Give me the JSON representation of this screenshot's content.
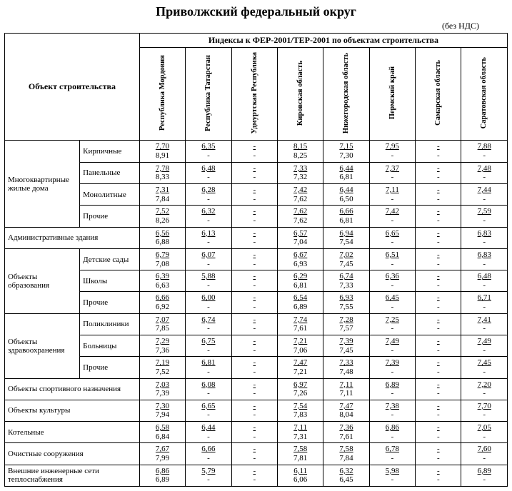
{
  "title": "Приволжский федеральный округ",
  "subtitle": "(без НДС)",
  "indexHeader": "Индексы к ФЕР-2001/ТЕР-2001 по объектам строительства",
  "objectHeader": "Объект строительства",
  "regions": [
    "Республика Мордовия",
    "Республика Татарстан",
    "Удмуртская Республика",
    "Кировская область",
    "Нижегородская область",
    "Пермский край",
    "Самарская область",
    "Саратовская область"
  ],
  "rows": [
    {
      "cat": "Многоквартирные жилые дома",
      "span": 4,
      "sub": "Кирпичные",
      "vals": [
        [
          "7,70",
          "8,91"
        ],
        [
          "6,35",
          "-"
        ],
        [
          "-",
          "-"
        ],
        [
          "8,15",
          "8,25"
        ],
        [
          "7,15",
          "7,30"
        ],
        [
          "7,95",
          "-"
        ],
        [
          "-",
          "-"
        ],
        [
          "7,88",
          "-"
        ]
      ]
    },
    {
      "sub": "Панельные",
      "vals": [
        [
          "7,78",
          "8,33"
        ],
        [
          "6,48",
          "-"
        ],
        [
          "-",
          "-"
        ],
        [
          "7,33",
          "7,32"
        ],
        [
          "6,44",
          "6,81"
        ],
        [
          "7,37",
          "-"
        ],
        [
          "-",
          "-"
        ],
        [
          "7,48",
          "-"
        ]
      ]
    },
    {
      "sub": "Монолитные",
      "vals": [
        [
          "7,31",
          "7,84"
        ],
        [
          "6,28",
          "-"
        ],
        [
          "-",
          "-"
        ],
        [
          "7,42",
          "7,62"
        ],
        [
          "6,44",
          "6,50"
        ],
        [
          "7,11",
          "-"
        ],
        [
          "-",
          "-"
        ],
        [
          "7,44",
          "-"
        ]
      ]
    },
    {
      "sub": "Прочие",
      "vals": [
        [
          "7,52",
          "8,26"
        ],
        [
          "6,32",
          "-"
        ],
        [
          "-",
          "-"
        ],
        [
          "7,62",
          "7,62"
        ],
        [
          "6,66",
          "6,81"
        ],
        [
          "7,42",
          "-"
        ],
        [
          "-",
          "-"
        ],
        [
          "7,59",
          "-"
        ]
      ]
    },
    {
      "cat": "Административные здания",
      "colspan": 2,
      "vals": [
        [
          "6,56",
          "6,88"
        ],
        [
          "6,13",
          "-"
        ],
        [
          "-",
          "-"
        ],
        [
          "6,57",
          "7,04"
        ],
        [
          "6,94",
          "7,54"
        ],
        [
          "6,65",
          "-"
        ],
        [
          "-",
          "-"
        ],
        [
          "6,83",
          "-"
        ]
      ]
    },
    {
      "cat": "Объекты образования",
      "span": 3,
      "sub": "Детские сады",
      "vals": [
        [
          "6,79",
          "7,08"
        ],
        [
          "6,07",
          "-"
        ],
        [
          "-",
          "-"
        ],
        [
          "6,67",
          "6,93"
        ],
        [
          "7,02",
          "7,45"
        ],
        [
          "6,51",
          "-"
        ],
        [
          "-",
          "-"
        ],
        [
          "6,83",
          "-"
        ]
      ]
    },
    {
      "sub": "Школы",
      "vals": [
        [
          "6,39",
          "6,63"
        ],
        [
          "5,88",
          "-"
        ],
        [
          "-",
          "-"
        ],
        [
          "6,29",
          "6,81"
        ],
        [
          "6,74",
          "7,33"
        ],
        [
          "6,36",
          "-"
        ],
        [
          "-",
          "-"
        ],
        [
          "6,48",
          "-"
        ]
      ]
    },
    {
      "sub": "Прочие",
      "vals": [
        [
          "6,66",
          "6,92"
        ],
        [
          "6,00",
          "-"
        ],
        [
          "-",
          "-"
        ],
        [
          "6,54",
          "6,89"
        ],
        [
          "6,93",
          "7,55"
        ],
        [
          "6,45",
          "-"
        ],
        [
          "-",
          "-"
        ],
        [
          "6,71",
          "-"
        ]
      ]
    },
    {
      "cat": "Объекты здравоохранения",
      "span": 3,
      "sub": "Поликлиники",
      "vals": [
        [
          "7,07",
          "7,85"
        ],
        [
          "6,74",
          "-"
        ],
        [
          "-",
          "-"
        ],
        [
          "7,74",
          "7,61"
        ],
        [
          "7,28",
          "7,57"
        ],
        [
          "7,25",
          "-"
        ],
        [
          "-",
          "-"
        ],
        [
          "7,41",
          "-"
        ]
      ]
    },
    {
      "sub": "Больницы",
      "vals": [
        [
          "7,29",
          "7,36"
        ],
        [
          "6,75",
          "-"
        ],
        [
          "-",
          "-"
        ],
        [
          "7,21",
          "7,06"
        ],
        [
          "7,39",
          "7,45"
        ],
        [
          "7,49",
          "-"
        ],
        [
          "-",
          "-"
        ],
        [
          "7,49",
          "-"
        ]
      ]
    },
    {
      "sub": "Прочие",
      "vals": [
        [
          "7,19",
          "7,52"
        ],
        [
          "6,81",
          "-"
        ],
        [
          "-",
          "-"
        ],
        [
          "7,47",
          "7,21"
        ],
        [
          "7,33",
          "7,48"
        ],
        [
          "7,39",
          "-"
        ],
        [
          "-",
          "-"
        ],
        [
          "7,45",
          "-"
        ]
      ]
    },
    {
      "cat": "Объекты спортивного назначения",
      "colspan": 2,
      "vals": [
        [
          "7,03",
          "7,39"
        ],
        [
          "6,08",
          "-"
        ],
        [
          "-",
          "-"
        ],
        [
          "6,97",
          "7,26"
        ],
        [
          "7,11",
          "7,11"
        ],
        [
          "6,89",
          "-"
        ],
        [
          "-",
          "-"
        ],
        [
          "7,20",
          "-"
        ]
      ]
    },
    {
      "cat": "Объекты культуры",
      "colspan": 2,
      "vals": [
        [
          "7,30",
          "7,94"
        ],
        [
          "6,65",
          "-"
        ],
        [
          "-",
          "-"
        ],
        [
          "7,54",
          "7,83"
        ],
        [
          "7,47",
          "8,04"
        ],
        [
          "7,38",
          "-"
        ],
        [
          "-",
          "-"
        ],
        [
          "7,70",
          "-"
        ]
      ]
    },
    {
      "cat": "Котельные",
      "colspan": 2,
      "vals": [
        [
          "6,58",
          "6,84"
        ],
        [
          "6,44",
          "-"
        ],
        [
          "-",
          "-"
        ],
        [
          "7,11",
          "7,31"
        ],
        [
          "7,36",
          "7,61"
        ],
        [
          "6,86",
          "-"
        ],
        [
          "-",
          "-"
        ],
        [
          "7,05",
          "-"
        ]
      ]
    },
    {
      "cat": "Очистные сооружения",
      "colspan": 2,
      "vals": [
        [
          "7,67",
          "7,99"
        ],
        [
          "6,66",
          "-"
        ],
        [
          "-",
          "-"
        ],
        [
          "7,58",
          "7,81"
        ],
        [
          "7,58",
          "7,84"
        ],
        [
          "6,78",
          "-"
        ],
        [
          "-",
          "-"
        ],
        [
          "7,60",
          "-"
        ]
      ]
    },
    {
      "cat": "Внешние инженерные сети теплоснабжения",
      "colspan": 2,
      "vals": [
        [
          "6,86",
          "6,89"
        ],
        [
          "5,79",
          "-"
        ],
        [
          "-",
          "-"
        ],
        [
          "6,11",
          "6,06"
        ],
        [
          "6,32",
          "6,45"
        ],
        [
          "5,98",
          "-"
        ],
        [
          "-",
          "-"
        ],
        [
          "6,89",
          "-"
        ]
      ]
    }
  ]
}
